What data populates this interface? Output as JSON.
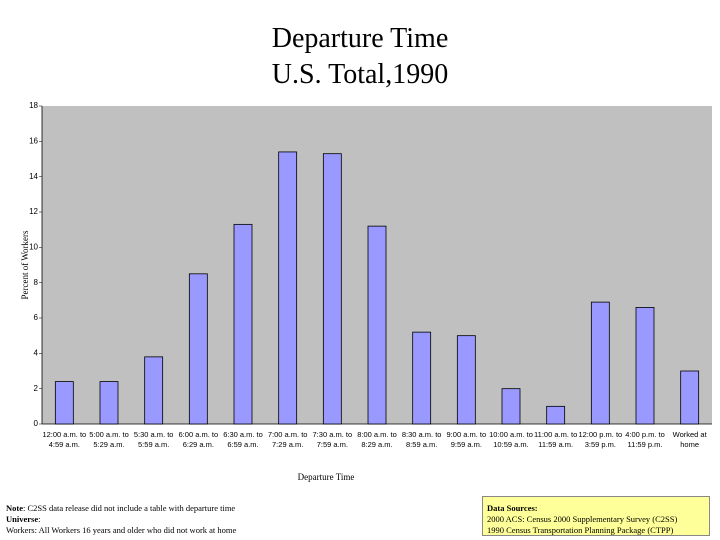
{
  "chart_data": {
    "type": "bar",
    "title": "Departure Time",
    "subtitle": "U.S. Total,1990",
    "x_label": "Departure Time",
    "y_label": "Percent of Workers",
    "categories": [
      "12:00 a.m. to 4:59 a.m.",
      "5:00 a.m. to 5:29 a.m.",
      "5:30 a.m. to 5:59 a.m.",
      "6:00 a.m. to 6:29 a.m.",
      "6:30 a.m. to 6:59 a.m.",
      "7:00 a.m. to 7:29 a.m.",
      "7:30 a.m. to 7:59 a.m.",
      "8:00 a.m. to 8:29 a.m.",
      "8:30 a.m. to 8:59 a.m.",
      "9:00 a.m. to 9:59 a.m.",
      "10:00 a.m. to 10:59 a.m.",
      "11:00 a.m. to 11:59 a.m.",
      "12:00 p.m. to 3:59 p.m.",
      "4:00 p.m. to 11:59 p.m.",
      "Worked at home"
    ],
    "values": [
      2.4,
      2.4,
      3.8,
      8.5,
      11.3,
      15.4,
      15.3,
      11.2,
      5.2,
      5.0,
      2.0,
      1.0,
      6.9,
      6.6,
      3.0
    ],
    "color": "#9999ff",
    "ylim": [
      0,
      18
    ],
    "yticks": [
      0,
      2,
      4,
      6,
      8,
      10,
      12,
      14,
      16,
      18
    ]
  },
  "footer": {
    "note_label": "Note",
    "note_text": ": C2SS data release did not include a table with departure time",
    "universe_label": "Universe",
    "universe_text": ":",
    "universe_detail": "Workers: All Workers 16 years and older who did not work at home",
    "sources_title": "Data Sources:",
    "sources": [
      "2000 ACS: Census 2000 Supplementary Survey (C2SS)",
      "1990 Census Transportation Planning Package (CTPP)"
    ]
  }
}
